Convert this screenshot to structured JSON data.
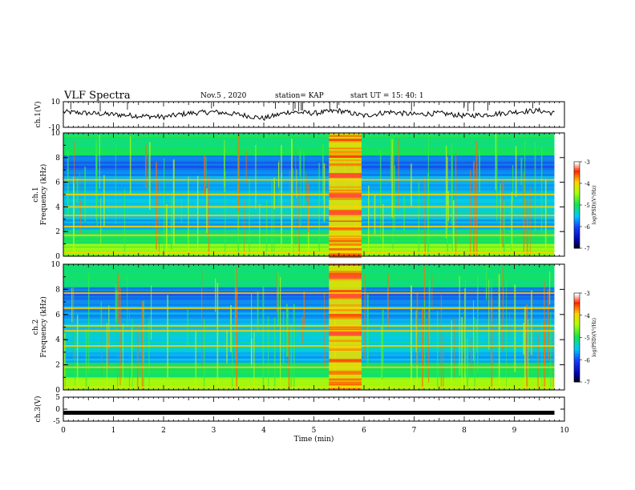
{
  "header": {
    "title": "VLF Spectra",
    "date": "Nov.5  , 2020",
    "station": "station= KAP",
    "start": "start  UT  =   15: 40: 1"
  },
  "chart_data": [
    {
      "type": "line",
      "ylabel": "ch.1(V)",
      "ylim": [
        -10,
        10
      ],
      "yticks": [
        {
          "value": 10,
          "label": "10"
        },
        {
          "value": -10,
          "label": "-10"
        }
      ],
      "xlim": [
        0,
        10
      ],
      "x": [
        0,
        0.5,
        1,
        1.5,
        2,
        2.5,
        3,
        3.5,
        4,
        4.5,
        5,
        5.5,
        6,
        6.5,
        7,
        7.5,
        8,
        8.5,
        9,
        9.5,
        9.8
      ],
      "values": [
        2,
        1,
        0,
        -1,
        -2,
        1,
        2,
        0,
        -3,
        2,
        1,
        3,
        -1,
        2,
        0,
        1,
        -1,
        0,
        2,
        3,
        1
      ],
      "color": "#000000"
    },
    {
      "type": "heatmap",
      "ylabel": "ch.1\nFrequency (kHz)",
      "ylim": [
        0,
        10
      ],
      "yticks": [
        "0",
        "2",
        "4",
        "6",
        "8",
        "10"
      ],
      "xlim": [
        0,
        10
      ],
      "colorbar": {
        "label": "log(PSD)(V²/Hz)",
        "range": [
          -7,
          -3
        ],
        "ticks": [
          "-3",
          "-4",
          "-5",
          "-6",
          "-7"
        ]
      },
      "burst_minutes": [
        5.3,
        5.95
      ],
      "strong_lines_khz": [
        6.2,
        5.0,
        4.0,
        3.3,
        2.4,
        1.7,
        0.3
      ],
      "burst_lines_khz": [
        6.5,
        4.9,
        3.5
      ]
    },
    {
      "type": "heatmap",
      "ylabel": "ch.2\nFrequency (kHz)",
      "ylim": [
        0,
        10
      ],
      "yticks": [
        "0",
        "2",
        "4",
        "6",
        "8",
        "10"
      ],
      "xlim": [
        0,
        10
      ],
      "colorbar": {
        "label": "log(PSD)(V²/Hz)",
        "range": [
          -7,
          -3
        ],
        "ticks": [
          "-3",
          "-4",
          "-5",
          "-6",
          "-7"
        ]
      },
      "burst_minutes": [
        5.3,
        5.95
      ],
      "strong_lines_khz": [
        7.7,
        6.5,
        5.1,
        4.7,
        3.5,
        1.8,
        0.2
      ],
      "burst_lines_khz": [
        9.0,
        7.5,
        4.5
      ]
    },
    {
      "type": "line",
      "ylabel": "ch.3(V)",
      "ylim": [
        -5,
        5
      ],
      "yticks": [
        {
          "value": 5,
          "label": "5"
        },
        {
          "value": 0,
          "label": "0"
        },
        {
          "value": -5,
          "label": "-5"
        }
      ],
      "xlim": [
        0,
        10
      ],
      "x": [
        0,
        9.8
      ],
      "values": [
        -1.5,
        -1.5
      ],
      "color": "#000000"
    }
  ],
  "xaxis": {
    "label": "Time (min)",
    "ticks": [
      "0",
      "1",
      "2",
      "3",
      "4",
      "5",
      "6",
      "7",
      "8",
      "9",
      "10"
    ]
  },
  "colors": {
    "spectrum_base": "#18e648",
    "low_power": "#0a2ad8",
    "mid_power": "#20c8e8",
    "high_power": "#e82818",
    "line_trace": "#000000"
  }
}
